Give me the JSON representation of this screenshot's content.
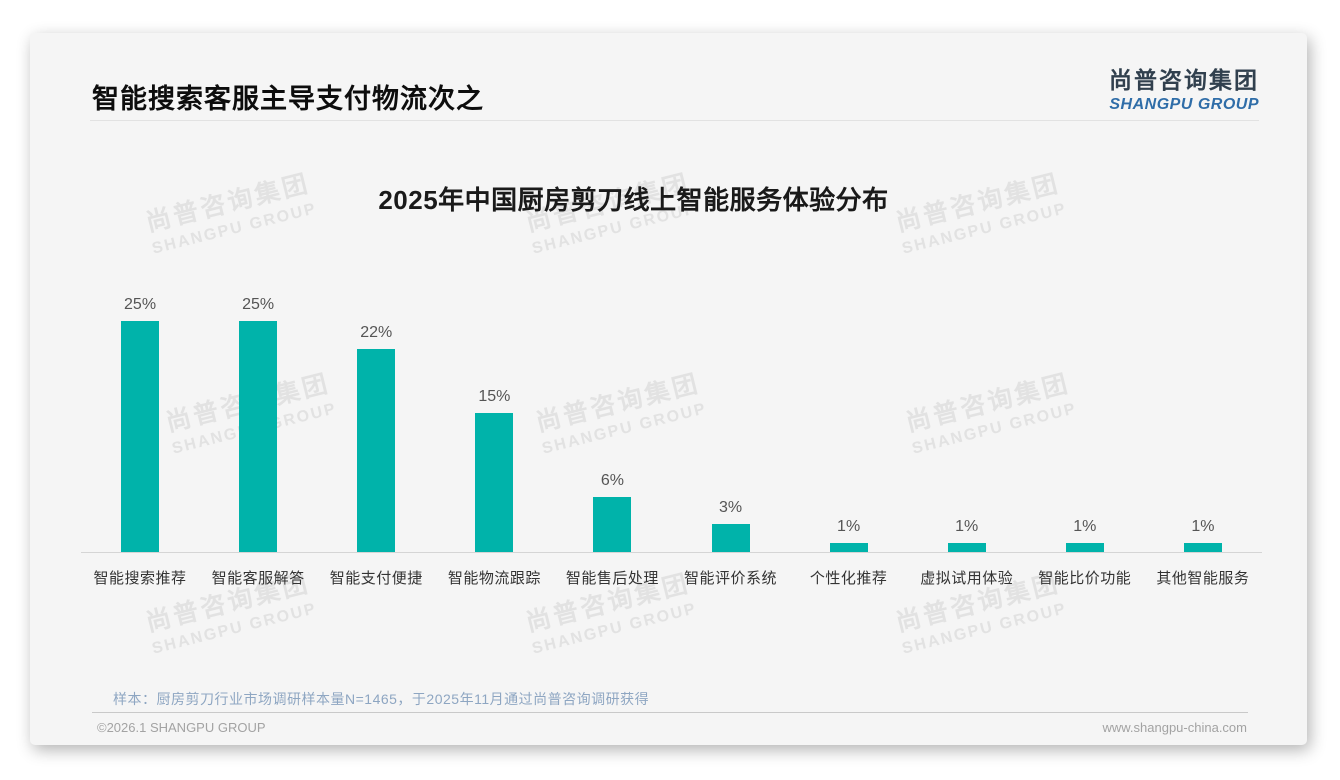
{
  "header": {
    "title": "智能搜索客服主导支付物流次之",
    "logo": {
      "cn": "尚普咨询集团",
      "en": "SHANGPU GROUP"
    }
  },
  "watermark": {
    "cn": "尚普咨询集团",
    "en": "SHANGPU GROUP"
  },
  "chart_data": {
    "type": "bar",
    "title": "2025年中国厨房剪刀线上智能服务体验分布",
    "categories": [
      "智能搜索推荐",
      "智能客服解答",
      "智能支付便捷",
      "智能物流跟踪",
      "智能售后处理",
      "智能评价系统",
      "个性化推荐",
      "虚拟试用体验",
      "智能比价功能",
      "其他智能服务"
    ],
    "values": [
      25,
      25,
      22,
      15,
      6,
      3,
      1,
      1,
      1,
      1
    ],
    "value_labels": [
      "25%",
      "25%",
      "22%",
      "15%",
      "6%",
      "3%",
      "1%",
      "1%",
      "1%",
      "1%"
    ],
    "unit": "%",
    "bar_color": "#00b3aa",
    "axis_color": "#d5d5d5",
    "ylim": [
      0,
      25
    ],
    "grid": false,
    "legend": false
  },
  "footnote": "样本：厨房剪刀行业市场调研样本量N=1465，于2025年11月通过尚普咨询调研获得",
  "footer": {
    "left": "©2026.1 SHANGPU GROUP",
    "right": "www.shangpu-china.com"
  }
}
